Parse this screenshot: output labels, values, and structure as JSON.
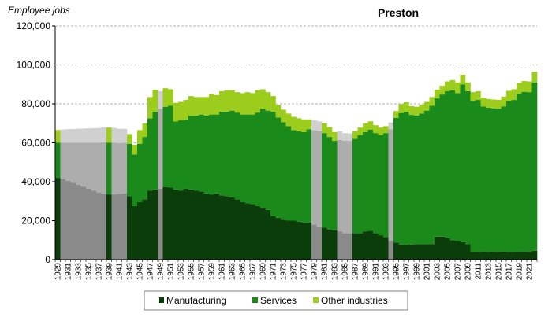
{
  "chart_data": {
    "type": "bar",
    "stacked": true,
    "title": "Preston",
    "ylabel": "Employee jobs",
    "xlabel": "",
    "ylim": [
      0,
      120000
    ],
    "yticks": [
      0,
      20000,
      40000,
      60000,
      80000,
      100000,
      120000
    ],
    "ytick_labels": [
      "0",
      "20,000",
      "40,000",
      "60,000",
      "80,000",
      "100,000",
      "120,000"
    ],
    "grid": true,
    "legend_position": "bottom",
    "x_start": 1929,
    "x_end": 2022,
    "xtick_labels": [
      "1929",
      "1931",
      "1933",
      "1935",
      "1937",
      "1939",
      "1941",
      "1943",
      "1945",
      "1947",
      "1949",
      "1951",
      "1953",
      "1955",
      "1957",
      "1959",
      "1961",
      "1963",
      "1965",
      "1967",
      "1969",
      "1971",
      "1973",
      "1975",
      "1977",
      "1979",
      "1981",
      "1983",
      "1985",
      "1987",
      "1989",
      "1991",
      "1993",
      "1995",
      "1997",
      "1999",
      "2001",
      "2003",
      "2005",
      "2007",
      "2009",
      "2011",
      "2013",
      "2015",
      "2017",
      "2019",
      "2021"
    ],
    "series": [
      {
        "name": "Manufacturing",
        "color": "#0b3d0b",
        "values": [
          42000,
          41500,
          40500,
          39500,
          38500,
          37500,
          36500,
          35500,
          34500,
          33800,
          33500,
          33500,
          33800,
          34000,
          32500,
          27500,
          29500,
          31000,
          35500,
          36000,
          36500,
          37200,
          37000,
          36000,
          35500,
          36500,
          36000,
          35500,
          35000,
          34000,
          33500,
          34000,
          33000,
          32500,
          32000,
          31000,
          29500,
          29000,
          28500,
          27500,
          26500,
          25500,
          22500,
          21500,
          20500,
          20000,
          20000,
          19500,
          19000,
          19000,
          18000,
          17000,
          16500,
          15500,
          15000,
          14500,
          13500,
          13500,
          13500,
          13500,
          14500,
          14800,
          13500,
          12500,
          11500,
          9500,
          8800,
          7800,
          7500,
          7800,
          8000,
          8000,
          8000,
          8000,
          11800,
          11800,
          11000,
          10000,
          9500,
          9000,
          8000,
          4000,
          4000,
          4200,
          4000,
          4200,
          4000,
          4200,
          4000,
          4000,
          4200,
          4200,
          4000,
          4500
        ]
      },
      {
        "name": "Services",
        "color": "#1a8a1a",
        "values": [
          18000,
          18500,
          19500,
          20500,
          21500,
          22500,
          23500,
          24500,
          25500,
          26500,
          26500,
          26500,
          26000,
          26000,
          27000,
          26500,
          30000,
          32000,
          37000,
          40000,
          41000,
          41300,
          42000,
          35000,
          36000,
          35500,
          38000,
          38500,
          39500,
          40000,
          41000,
          40500,
          43000,
          43500,
          44500,
          44500,
          45000,
          45500,
          46000,
          48000,
          51000,
          51000,
          53500,
          51500,
          50000,
          48500,
          46500,
          46500,
          46500,
          48000,
          48500,
          49000,
          48500,
          47500,
          46000,
          47000,
          47500,
          47500,
          48500,
          50500,
          51000,
          52000,
          51500,
          51500,
          53500,
          57500,
          64000,
          67500,
          68500,
          66500,
          66000,
          67000,
          68500,
          71000,
          71000,
          73000,
          75500,
          77000,
          76000,
          81000,
          78500,
          77500,
          78000,
          74500,
          74000,
          73500,
          73500,
          74500,
          77500,
          78000,
          81000,
          82000,
          82000,
          86500
        ]
      },
      {
        "name": "Other industries",
        "color": "#9ccc1c",
        "values": [
          6600,
          6800,
          7000,
          7100,
          7200,
          7300,
          7400,
          7500,
          7600,
          7700,
          7800,
          7600,
          7400,
          7200,
          5000,
          5000,
          7000,
          7000,
          11000,
          11200,
          9000,
          9500,
          8500,
          9500,
          9500,
          10000,
          10000,
          9500,
          9000,
          9500,
          10500,
          10000,
          10500,
          11000,
          10500,
          10500,
          11000,
          11500,
          11000,
          11500,
          10000,
          9500,
          8000,
          6500,
          6500,
          6500,
          6800,
          6600,
          6500,
          5000,
          5000,
          5000,
          5000,
          5000,
          4500,
          4500,
          4000,
          3800,
          4000,
          3800,
          4500,
          4200,
          4000,
          3800,
          3500,
          3500,
          3500,
          4500,
          4800,
          4500,
          4500,
          4500,
          4500,
          4500,
          4500,
          4500,
          5000,
          5200,
          5500,
          5000,
          4500,
          4500,
          4500,
          4500,
          4500,
          4500,
          4500,
          5000,
          5200,
          5500,
          5500,
          5500,
          5500,
          5500
        ]
      }
    ],
    "estimated_years": [
      1930,
      1931,
      1932,
      1933,
      1934,
      1935,
      1936,
      1937,
      1938,
      1940,
      1941,
      1942,
      1949,
      1979,
      1980,
      1984,
      1985,
      1986,
      1994
    ]
  },
  "legend": {
    "items": [
      {
        "label": "Manufacturing",
        "color": "#0b3d0b"
      },
      {
        "label": "Services",
        "color": "#1a8a1a"
      },
      {
        "label": "Other industries",
        "color": "#9ccc1c"
      }
    ]
  }
}
